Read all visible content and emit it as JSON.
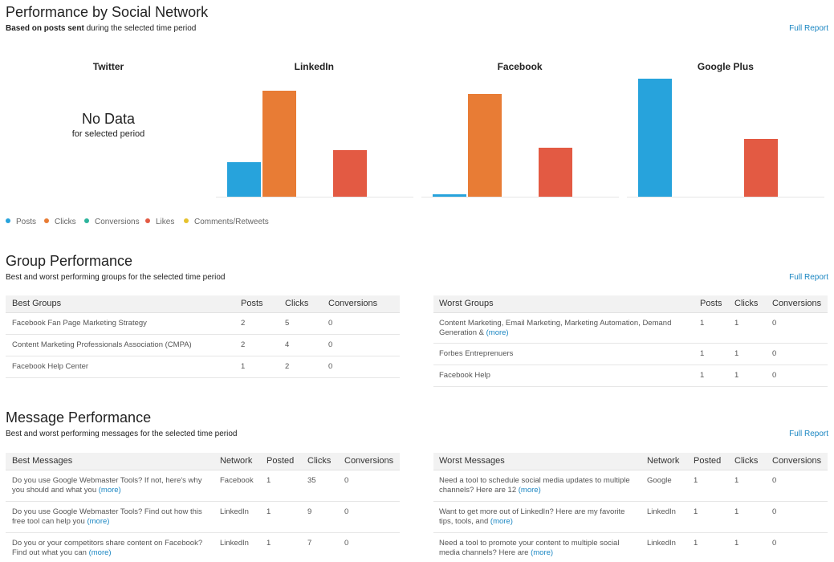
{
  "header": {
    "title": "Performance by Social Network",
    "subtitle_bold": "Based on posts sent",
    "subtitle_rest": "during the selected time period",
    "full_report": "Full Report"
  },
  "network_chart": {
    "type": "bar",
    "ylim": [
      0,
      150
    ],
    "series": [
      {
        "name": "Posts",
        "color": "#27a3dc"
      },
      {
        "name": "Clicks",
        "color": "#e87c35"
      },
      {
        "name": "Conversions",
        "color": "#2db49c"
      },
      {
        "name": "Likes",
        "color": "#e35a43"
      },
      {
        "name": "Comments/Retweets",
        "color": "#e6c22e"
      }
    ],
    "panels": [
      {
        "title": "Twitter",
        "no_data": "No Data",
        "no_data_note": "for selected period"
      },
      {
        "title": "LinkedIn",
        "values": [
          43,
          132,
          0,
          58,
          0
        ]
      },
      {
        "title": "Facebook",
        "values": [
          3,
          128,
          0,
          61,
          0
        ]
      },
      {
        "title": "Google Plus",
        "values": [
          147,
          0,
          0,
          72,
          0
        ]
      }
    ]
  },
  "groups": {
    "title": "Group Performance",
    "subtitle": "Best and worst performing groups for the selected time period",
    "full_report": "Full Report",
    "best": {
      "columns": [
        "Best Groups",
        "Posts",
        "Clicks",
        "Conversions"
      ],
      "rows": [
        {
          "text": "Facebook Fan Page Marketing Strategy",
          "cells": [
            2,
            5,
            0
          ]
        },
        {
          "text": "Content Marketing Professionals Association (CMPA)",
          "cells": [
            2,
            4,
            0
          ]
        },
        {
          "text": "Facebook Help Center",
          "cells": [
            1,
            2,
            0
          ]
        }
      ]
    },
    "worst": {
      "columns": [
        "Worst Groups",
        "Posts",
        "Clicks",
        "Conversions"
      ],
      "rows": [
        {
          "text": "Content Marketing, Email Marketing, Marketing Automation, Demand Generation &",
          "more": "(more)",
          "cells": [
            1,
            1,
            0
          ]
        },
        {
          "text": "Forbes Entreprenuers",
          "cells": [
            1,
            1,
            0
          ]
        },
        {
          "text": "Facebook Help",
          "cells": [
            1,
            1,
            0
          ]
        }
      ]
    }
  },
  "messages": {
    "title": "Message Performance",
    "subtitle": "Best and worst performing messages for the selected time period",
    "full_report": "Full Report",
    "best": {
      "columns": [
        "Best Messages",
        "Network",
        "Posted",
        "Clicks",
        "Conversions"
      ],
      "rows": [
        {
          "text": "Do you use Google Webmaster Tools? If not, here's why you should and what you",
          "more": "(more)",
          "cells": [
            "Facebook",
            1,
            35,
            0
          ]
        },
        {
          "text": "Do you use Google Webmaster Tools? Find out how this free tool can help you",
          "more": "(more)",
          "cells": [
            "LinkedIn",
            1,
            9,
            0
          ]
        },
        {
          "text": "Do you or your competitors share content on Facebook? Find out what you can",
          "more": "(more)",
          "cells": [
            "LinkedIn",
            1,
            7,
            0
          ]
        }
      ]
    },
    "worst": {
      "columns": [
        "Worst Messages",
        "Network",
        "Posted",
        "Clicks",
        "Conversions"
      ],
      "rows": [
        {
          "text": "Need a tool to schedule social media updates to multiple channels? Here are 12",
          "more": "(more)",
          "cells": [
            "Google",
            1,
            1,
            0
          ]
        },
        {
          "text": "Want to get more out of LinkedIn? Here are my favorite tips, tools, and",
          "more": "(more)",
          "cells": [
            "LinkedIn",
            1,
            1,
            0
          ]
        },
        {
          "text": "Need a tool to promote your content to multiple social media channels? Here are",
          "more": "(more)",
          "cells": [
            "LinkedIn",
            1,
            1,
            0
          ]
        }
      ]
    }
  }
}
